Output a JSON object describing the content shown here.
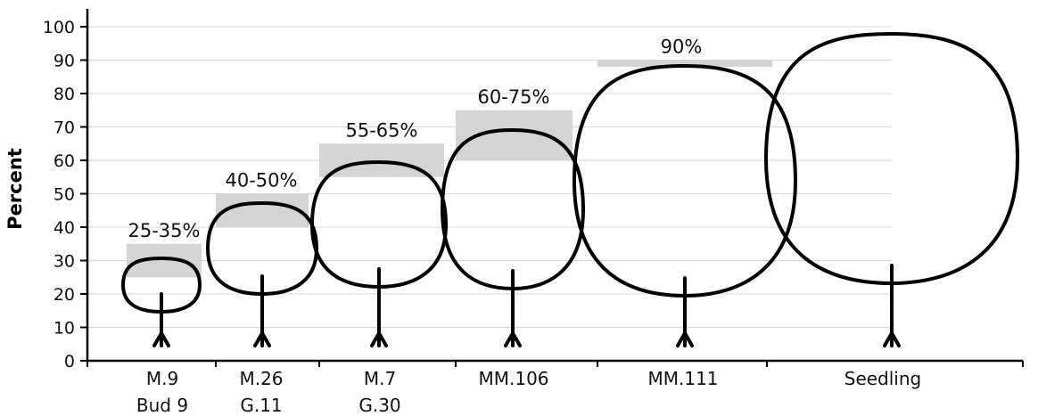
{
  "chart_data": {
    "type": "bar",
    "ylabel": "Percent",
    "xlabel": "",
    "ylim": [
      0,
      100
    ],
    "yticks": [
      0,
      10,
      20,
      30,
      40,
      50,
      60,
      70,
      80,
      90,
      100
    ],
    "grid": true,
    "categories": [
      {
        "lines": [
          "M.9",
          "Bud 9"
        ],
        "min": 25,
        "max": 35,
        "label": "25-35%"
      },
      {
        "lines": [
          "M.26",
          "G.11"
        ],
        "min": 40,
        "max": 50,
        "label": "40-50%"
      },
      {
        "lines": [
          "M.7",
          "G.30"
        ],
        "min": 55,
        "max": 65,
        "label": "55-65%"
      },
      {
        "lines": [
          "MM.106"
        ],
        "min": 60,
        "max": 75,
        "label": "60-75%"
      },
      {
        "lines": [
          "MM.111"
        ],
        "min": 88,
        "max": 90,
        "label": "90%"
      },
      {
        "lines": [
          "Seedling"
        ],
        "min": null,
        "max": 100,
        "label": ""
      }
    ]
  }
}
